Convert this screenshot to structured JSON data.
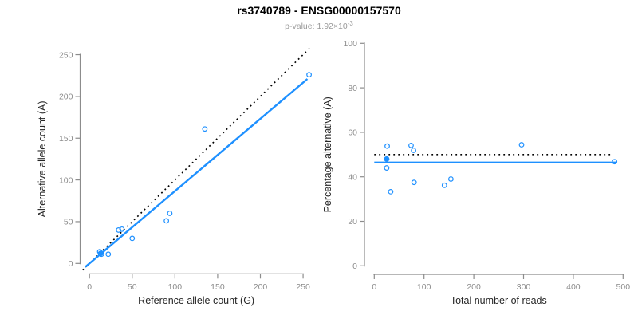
{
  "header": {
    "title": "rs3740789 - ENSG00000157570",
    "p_value_text": "p-value: 1.92×10",
    "p_value_exponent": "-3"
  },
  "colors": {
    "accent_blue": "#1E90FF",
    "axis_gray": "#8c8c8c",
    "tick_label_gray": "#8c8c8c",
    "axis_title_color": "#262626",
    "dotted_line_color": "#000000",
    "subtitle_gray": "#9a9a9a"
  },
  "chart_data": [
    {
      "id": "allele-count-scatter",
      "type": "scatter",
      "title": "",
      "xlabel": "Reference allele count (G)",
      "ylabel": "Alternative allele count (A)",
      "xlim": [
        0,
        250
      ],
      "ylim": [
        0,
        250
      ],
      "xticks": [
        0,
        50,
        100,
        150,
        200,
        250
      ],
      "yticks": [
        0,
        50,
        100,
        150,
        200,
        250
      ],
      "grid": false,
      "legend": "none",
      "points": [
        {
          "x": 12,
          "y": 14
        },
        {
          "x": 13,
          "y": 12,
          "filled": true
        },
        {
          "x": 13,
          "y": 12
        },
        {
          "x": 14,
          "y": 11
        },
        {
          "x": 22,
          "y": 11
        },
        {
          "x": 34,
          "y": 40
        },
        {
          "x": 38,
          "y": 41
        },
        {
          "x": 50,
          "y": 30
        },
        {
          "x": 90,
          "y": 51
        },
        {
          "x": 94,
          "y": 60
        },
        {
          "x": 135,
          "y": 161
        },
        {
          "x": 257,
          "y": 226
        }
      ],
      "lines": [
        {
          "name": "identity-line",
          "style": "dotted",
          "color": "#000000",
          "slope": 1,
          "intercept": 0,
          "from": [
            -8,
            -8
          ],
          "to": [
            259,
            259
          ]
        },
        {
          "name": "fit-line",
          "style": "solid",
          "color": "#1E90FF",
          "slope": 0.866,
          "intercept": 0,
          "from": [
            -5,
            -4.3
          ],
          "to": [
            255,
            220.9
          ]
        }
      ]
    },
    {
      "id": "percentage-alternative-scatter",
      "type": "scatter",
      "title": "",
      "xlabel": "Total number of reads",
      "ylabel": "Percentage alternative (A)",
      "xlim": [
        0,
        500
      ],
      "ylim": [
        0,
        100
      ],
      "xticks": [
        0,
        100,
        200,
        300,
        400,
        500
      ],
      "yticks": [
        0,
        20,
        40,
        60,
        80,
        100
      ],
      "grid": false,
      "legend": "none",
      "points": [
        {
          "x": 26,
          "y": 53.8
        },
        {
          "x": 25,
          "y": 48.0,
          "filled": true
        },
        {
          "x": 25,
          "y": 48.0
        },
        {
          "x": 25,
          "y": 44.0
        },
        {
          "x": 33,
          "y": 33.3
        },
        {
          "x": 74,
          "y": 54.1
        },
        {
          "x": 79,
          "y": 51.9
        },
        {
          "x": 80,
          "y": 37.5
        },
        {
          "x": 141,
          "y": 36.2
        },
        {
          "x": 154,
          "y": 39.0
        },
        {
          "x": 296,
          "y": 54.4
        },
        {
          "x": 483,
          "y": 46.8
        }
      ],
      "lines": [
        {
          "name": "expected-50pct-line",
          "style": "dotted",
          "color": "#000000",
          "y": 50.0,
          "from": [
            0,
            50
          ],
          "to": [
            479,
            50
          ]
        },
        {
          "name": "observed-ratio-line",
          "style": "solid",
          "color": "#1E90FF",
          "y": 46.4,
          "from": [
            0,
            46.4
          ],
          "to": [
            487,
            46.4
          ]
        }
      ]
    }
  ]
}
